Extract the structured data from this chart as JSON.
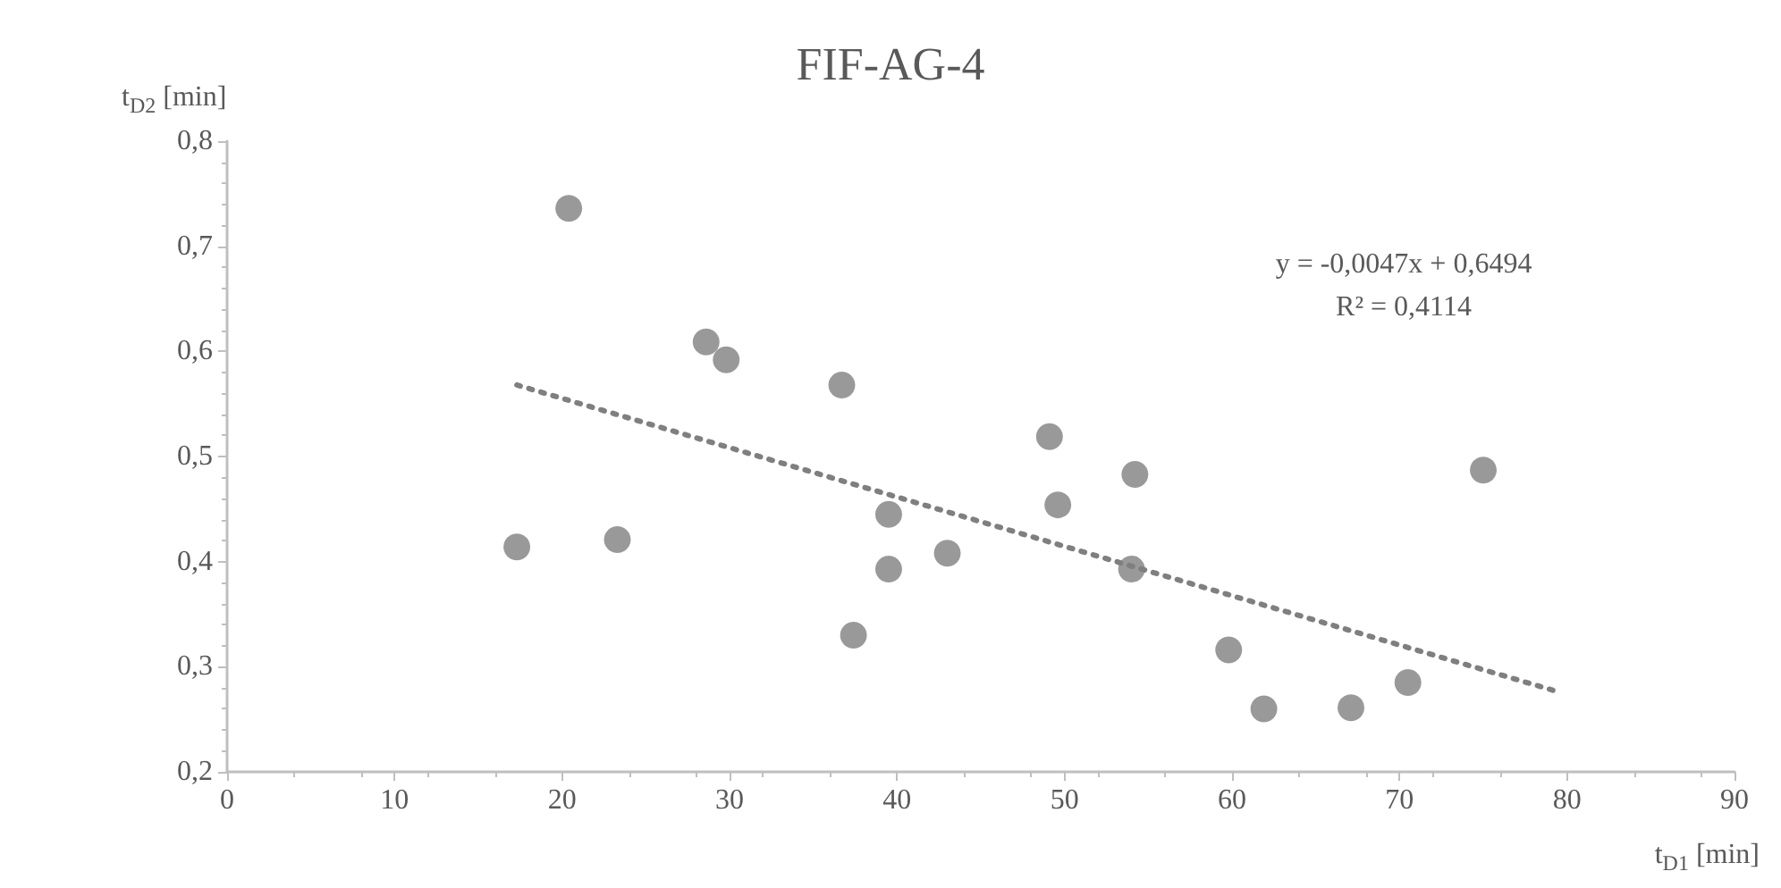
{
  "chart_data": {
    "type": "scatter",
    "title": "FIF-AG-4",
    "xlabel": "t$_{D1}$ [min]",
    "ylabel": "t$_{D2}$ [min]",
    "annotations": [
      "y = -0,0047x + 0,6494",
      "R² = 0,4114"
    ],
    "xlim": [
      0,
      90
    ],
    "xticks": [
      0,
      10,
      20,
      30,
      40,
      50,
      60,
      70,
      80,
      90
    ],
    "ylim": [
      0.2,
      0.8
    ],
    "yticks": [
      {
        "value": 0.2,
        "label": "0,2"
      },
      {
        "value": 0.3,
        "label": "0,3"
      },
      {
        "value": 0.4,
        "label": "0,4"
      },
      {
        "value": 0.5,
        "label": "0,5"
      },
      {
        "value": 0.6,
        "label": "0,6"
      },
      {
        "value": 0.7,
        "label": "0,7"
      },
      {
        "value": 0.8,
        "label": "0,8"
      }
    ],
    "grid": false,
    "marker": "circle",
    "series": [
      {
        "color": "#7f7f7f",
        "x": [
          17.3,
          20.4,
          23.3,
          28.6,
          29.8,
          36.7,
          37.4,
          39.5,
          39.5,
          43.0,
          49.1,
          49.6,
          54.2,
          54.0,
          59.8,
          61.9,
          67.1,
          70.5,
          75.0
        ],
        "values": [
          0.414,
          0.736,
          0.421,
          0.609,
          0.592,
          0.568,
          0.33,
          0.445,
          0.393,
          0.408,
          0.519,
          0.454,
          0.483,
          0.393,
          0.316,
          0.26,
          0.261,
          0.285,
          0.487
        ]
      },
      {
        "type": "line",
        "color": "#7f7f7f",
        "line_style": "dotted",
        "marker": "none",
        "x": [
          17.3,
          79.3
        ],
        "values": [
          0.568,
          0.277
        ]
      }
    ]
  }
}
